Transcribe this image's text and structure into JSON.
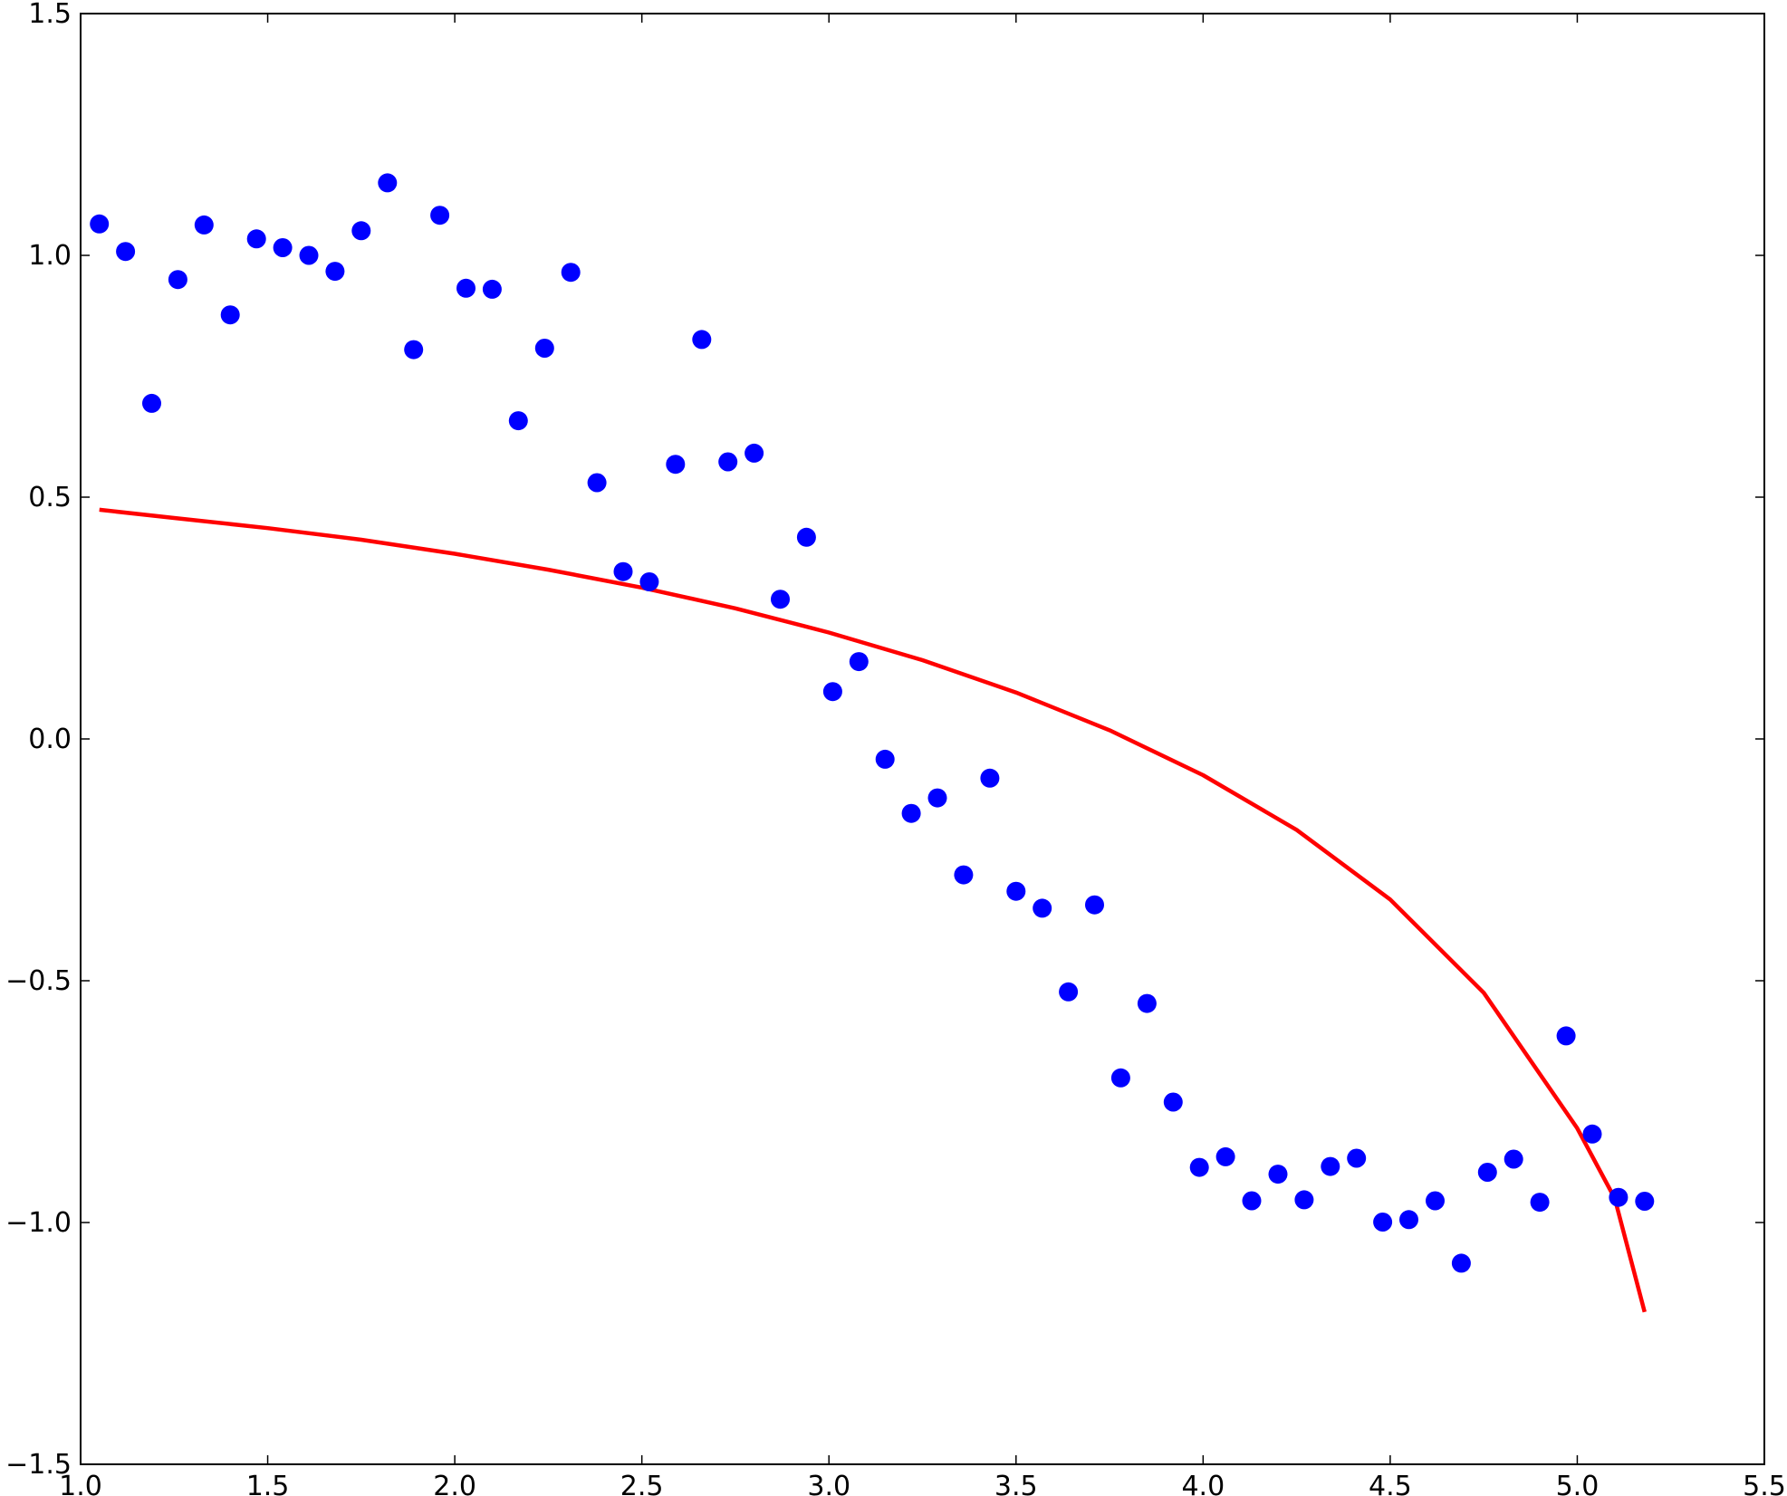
{
  "chart_data": {
    "type": "scatter",
    "title": "",
    "xlabel": "",
    "ylabel": "",
    "xlim": [
      1.0,
      5.5
    ],
    "ylim": [
      -1.5,
      1.5
    ],
    "grid": false,
    "x_ticks": [
      "1.0",
      "1.5",
      "2.0",
      "2.5",
      "3.0",
      "3.5",
      "4.0",
      "4.5",
      "5.0",
      "5.5"
    ],
    "y_ticks": [
      "−1.5",
      "−1.0",
      "−0.5",
      "0.0",
      "0.5",
      "1.0",
      "1.5"
    ],
    "colors": {
      "points": "#0000ff",
      "curve": "#ff0000",
      "axes": "#000000",
      "background": "#ffffff"
    },
    "series": [
      {
        "kind": "scatter",
        "x": [
          1.05,
          1.12,
          1.19,
          1.26,
          1.33,
          1.4,
          1.47,
          1.54,
          1.61,
          1.68,
          1.75,
          1.82,
          1.89,
          1.96,
          2.03,
          2.1,
          2.17,
          2.24,
          2.31,
          2.38,
          2.45,
          2.52,
          2.59,
          2.66,
          2.73,
          2.8,
          2.87,
          2.94,
          3.01,
          3.08,
          3.15,
          3.22,
          3.29,
          3.36,
          3.43,
          3.5,
          3.57,
          3.64,
          3.71,
          3.78,
          3.85,
          3.92,
          3.99,
          4.06,
          4.13,
          4.2,
          4.27,
          4.34,
          4.41,
          4.48,
          4.55,
          4.62,
          4.69,
          4.76,
          4.83,
          4.9,
          4.97,
          5.04,
          5.11,
          5.18
        ],
        "y": [
          1.065,
          1.008,
          0.694,
          0.95,
          1.063,
          0.877,
          1.034,
          1.016,
          1.0,
          0.967,
          1.051,
          1.15,
          0.805,
          1.083,
          0.932,
          0.93,
          0.658,
          0.808,
          0.965,
          0.53,
          0.346,
          0.325,
          0.568,
          0.826,
          0.573,
          0.591,
          0.289,
          0.417,
          0.098,
          0.16,
          -0.042,
          -0.154,
          -0.122,
          -0.281,
          -0.081,
          -0.315,
          -0.35,
          -0.523,
          -0.343,
          -0.701,
          -0.547,
          -0.751,
          -0.886,
          -0.864,
          -0.955,
          -0.9,
          -0.953,
          -0.884,
          -0.867,
          -0.999,
          -0.994,
          -0.955,
          -1.084,
          -0.896,
          -0.869,
          -0.958,
          -0.614,
          -0.817,
          -0.948,
          -0.956
        ]
      },
      {
        "kind": "line",
        "x": [
          1.05,
          1.25,
          1.5,
          1.75,
          2.0,
          2.25,
          2.5,
          2.75,
          3.0,
          3.25,
          3.5,
          3.75,
          4.0,
          4.25,
          4.5,
          4.75,
          5.0,
          5.1,
          5.18
        ],
        "y": [
          0.474,
          0.457,
          0.436,
          0.412,
          0.383,
          0.35,
          0.313,
          0.27,
          0.22,
          0.163,
          0.096,
          0.018,
          -0.075,
          -0.188,
          -0.332,
          -0.525,
          -0.805,
          -0.95,
          -1.185
        ]
      }
    ]
  }
}
